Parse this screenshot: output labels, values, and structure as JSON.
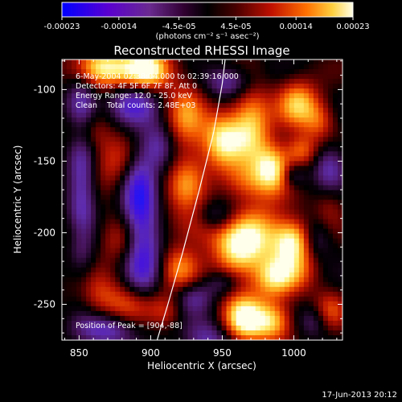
{
  "colorbar": {
    "tick_labels": [
      "-0.00023",
      "-0.00014",
      "-4.5e-05",
      "4.5e-05",
      "0.00014",
      "0.00023"
    ],
    "tick_values": [
      -0.00023,
      -0.00014,
      -4.5e-05,
      4.5e-05,
      0.00014,
      0.00023
    ],
    "range": [
      -0.00023,
      0.00023
    ],
    "units_label": "(photons cm⁻² s⁻¹ asec⁻²)"
  },
  "chart_data": {
    "type": "heatmap",
    "title": "Reconstructed RHESSI Image",
    "xlabel": "Heliocentric X (arcsec)",
    "ylabel": "Heliocentric Y (arcsec)",
    "xlim": [
      838,
      1034
    ],
    "ylim": [
      -275,
      -79
    ],
    "x_ticks": [
      850,
      900,
      950,
      1000
    ],
    "y_ticks": [
      -100,
      -150,
      -200,
      -250
    ],
    "info_lines": [
      "6-May-2004 02:38:04.000 to 02:39:16.000",
      "Detectors: 4F 5F 6F 7F 8F, Att 0",
      "Energy Range: 12.0 - 25.0 keV",
      "Clean    Total counts: 2.48E+03"
    ],
    "peak_label": "Position of Peak = [904,-88]",
    "peak_position": [
      904,
      -88
    ],
    "limb_curve": {
      "x": [
        904.5,
        912,
        922,
        934,
        944,
        950,
        952
      ],
      "y": [
        -275,
        -250,
        -215,
        -170,
        -130,
        -96,
        -79
      ]
    }
  },
  "footer": {
    "date": "17-Jun-2013 20:12"
  }
}
